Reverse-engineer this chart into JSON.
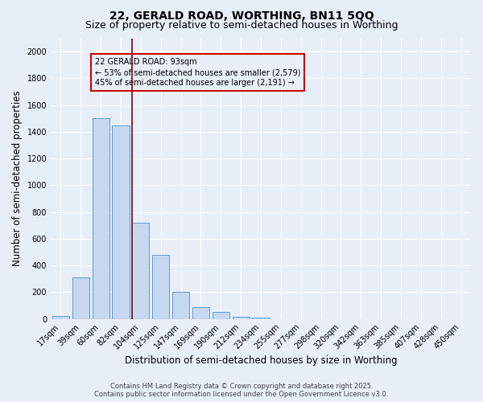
{
  "title1": "22, GERALD ROAD, WORTHING, BN11 5QQ",
  "title2": "Size of property relative to semi-detached houses in Worthing",
  "xlabel": "Distribution of semi-detached houses by size in Worthing",
  "ylabel": "Number of semi-detached properties",
  "categories": [
    "17sqm",
    "39sqm",
    "60sqm",
    "82sqm",
    "104sqm",
    "125sqm",
    "147sqm",
    "169sqm",
    "190sqm",
    "212sqm",
    "234sqm",
    "255sqm",
    "277sqm",
    "298sqm",
    "320sqm",
    "342sqm",
    "363sqm",
    "385sqm",
    "407sqm",
    "428sqm",
    "450sqm"
  ],
  "values": [
    20,
    310,
    1500,
    1450,
    720,
    480,
    200,
    90,
    50,
    15,
    10,
    0,
    0,
    0,
    0,
    0,
    0,
    0,
    0,
    0,
    0
  ],
  "bar_color": "#c5d8f0",
  "bar_edgecolor": "#5b9bd5",
  "vline_color": "#8b0000",
  "vline_bar_index": 3.57,
  "annotation_text": "22 GERALD ROAD: 93sqm\n← 53% of semi-detached houses are smaller (2,579)\n45% of semi-detached houses are larger (2,191) →",
  "box_edgecolor": "#cc0000",
  "ylim": [
    0,
    2100
  ],
  "yticks": [
    0,
    200,
    400,
    600,
    800,
    1000,
    1200,
    1400,
    1600,
    1800,
    2000
  ],
  "footer1": "Contains HM Land Registry data © Crown copyright and database right 2025.",
  "footer2": "Contains public sector information licensed under the Open Government Licence v3.0.",
  "bg_color": "#e8eef8",
  "plot_bg_color": "#e8eef8",
  "grid_color": "#ffffff",
  "title1_fontsize": 10,
  "title2_fontsize": 9,
  "tick_fontsize": 7,
  "label_fontsize": 8.5,
  "footer_fontsize": 6,
  "annot_fontsize": 7
}
